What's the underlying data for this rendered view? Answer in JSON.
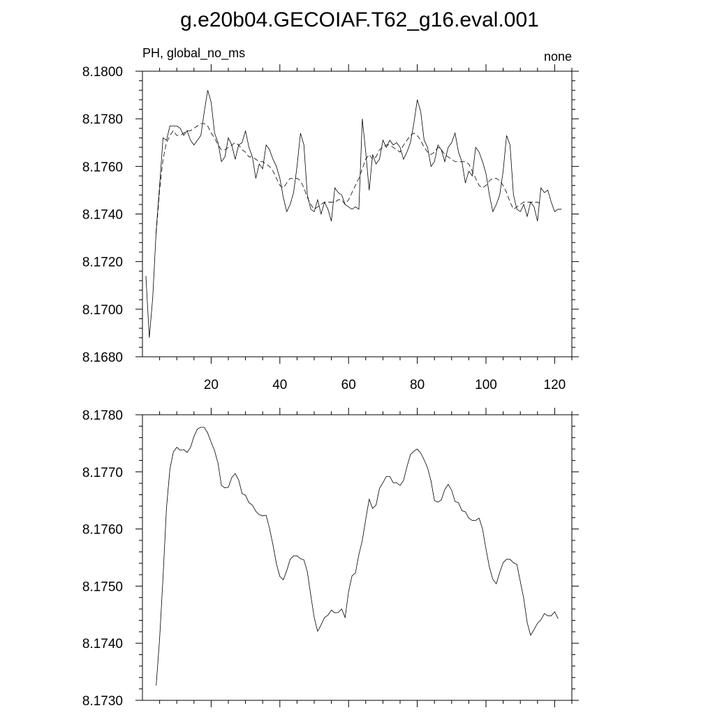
{
  "title": "g.e20b04.GECOIAF.T62_g16.eval.001",
  "chart_data": [
    {
      "type": "line",
      "left_label": "PH, global_no_ms",
      "right_label": "none",
      "xlim": [
        0,
        125
      ],
      "ylim": [
        8.168,
        8.18
      ],
      "x_ticks": [
        20,
        40,
        60,
        80,
        100,
        120
      ],
      "y_ticks": [
        "8.1680",
        "8.1700",
        "8.1720",
        "8.1740",
        "8.1760",
        "8.1780",
        "8.1800"
      ],
      "series": [
        {
          "style": "solid",
          "x_start": 1,
          "values": [
            8.1714,
            8.1688,
            8.1705,
            8.1733,
            8.1752,
            8.1772,
            8.1771,
            8.1777,
            8.1777,
            8.1777,
            8.1776,
            8.1773,
            8.1775,
            8.1771,
            8.1769,
            8.1771,
            8.1773,
            8.1783,
            8.1792,
            8.1787,
            8.1774,
            8.177,
            8.1762,
            8.1764,
            8.1772,
            8.1769,
            8.1763,
            8.1769,
            8.177,
            8.1775,
            8.1768,
            8.1764,
            8.1755,
            8.1761,
            8.1759,
            8.1769,
            8.1767,
            8.1763,
            8.176,
            8.1755,
            8.1747,
            8.1741,
            8.1744,
            8.1749,
            8.176,
            8.1774,
            8.1769,
            8.1748,
            8.1742,
            8.1741,
            8.1746,
            8.174,
            8.1745,
            8.1742,
            8.1737,
            8.1751,
            8.1749,
            8.1748,
            8.1744,
            8.1743,
            8.1742,
            8.1743,
            8.1742,
            8.178,
            8.1766,
            8.175,
            8.1765,
            8.1761,
            8.1763,
            8.1771,
            8.1768,
            8.1771,
            8.1769,
            8.177,
            8.1768,
            8.1763,
            8.1766,
            8.177,
            8.1778,
            8.1788,
            8.1783,
            8.1771,
            8.1768,
            8.176,
            8.1762,
            8.1769,
            8.1767,
            8.1762,
            8.1768,
            8.177,
            8.1774,
            8.1766,
            8.1762,
            8.1753,
            8.1758,
            8.1756,
            8.1768,
            8.1766,
            8.1762,
            8.1757,
            8.1748,
            8.1741,
            8.1744,
            8.1748,
            8.1758,
            8.1773,
            8.1769,
            8.1748,
            8.1742,
            8.1741,
            8.1744,
            8.1739,
            8.1745,
            8.1743,
            8.1737,
            8.1751,
            8.1749,
            8.175,
            8.1745,
            8.1741,
            8.1742,
            8.1742
          ]
        },
        {
          "style": "dashed",
          "x_start": 4,
          "values": [
            8.1732,
            8.175,
            8.1763,
            8.177,
            8.1773,
            8.1775,
            8.1773,
            8.1773,
            8.1774,
            8.1775,
            8.1775,
            8.1776,
            8.1777,
            8.1778,
            8.1778,
            8.1777,
            8.1774,
            8.1772,
            8.1769,
            8.1767,
            8.1767,
            8.1768,
            8.1769,
            8.177,
            8.1769,
            8.1767,
            8.1766,
            8.1764,
            8.1764,
            8.1763,
            8.1762,
            8.1762,
            8.1761,
            8.176,
            8.1758,
            8.1755,
            8.1752,
            8.1751,
            8.1753,
            8.1755,
            8.1755,
            8.1755,
            8.1754,
            8.1751,
            8.1747,
            8.1744,
            8.1742,
            8.1743,
            8.1744,
            8.1745,
            8.1745,
            8.1745,
            8.1745,
            8.1746,
            8.1746,
            8.1744,
            8.1746,
            8.1749,
            8.1752,
            8.1755,
            8.1759,
            8.1763,
            8.1765,
            8.1763,
            8.1764,
            8.1767,
            8.1768,
            8.1769,
            8.1769,
            8.1768,
            8.1767,
            8.1766,
            8.1769,
            8.1771,
            8.1773,
            8.1774,
            8.1773,
            8.1771,
            8.1768,
            8.1766,
            8.1765,
            8.1766,
            8.1768,
            8.1767,
            8.1765,
            8.1764,
            8.1763,
            8.1762,
            8.1762,
            8.1762,
            8.1762,
            8.1761,
            8.1758,
            8.1755,
            8.1752,
            8.1751,
            8.1752,
            8.1754,
            8.1755,
            8.1755,
            8.1754,
            8.1752,
            8.1749,
            8.1745,
            8.1742,
            8.1743,
            8.1744,
            8.1745,
            8.1745,
            8.1745,
            8.1745,
            8.1745,
            8.1744
          ]
        }
      ]
    },
    {
      "type": "line",
      "xlim": [
        0,
        125
      ],
      "ylim": [
        8.173,
        8.178
      ],
      "y_ticks": [
        "8.1730",
        "8.1740",
        "8.1750",
        "8.1760",
        "8.1770",
        "8.1780"
      ],
      "series": [
        {
          "style": "solid",
          "x_start": 4,
          "values": [
            8.17326,
            8.17408,
            8.17516,
            8.17637,
            8.17705,
            8.17735,
            8.17743,
            8.17738,
            8.17739,
            8.17734,
            8.17743,
            8.17762,
            8.17775,
            8.17778,
            8.17778,
            8.17768,
            8.17752,
            8.17737,
            8.17715,
            8.17676,
            8.17672,
            8.17673,
            8.1769,
            8.17697,
            8.17686,
            8.17662,
            8.17659,
            8.17646,
            8.17642,
            8.17631,
            8.17625,
            8.17623,
            8.17624,
            8.17601,
            8.17572,
            8.17539,
            8.17517,
            8.17511,
            8.17527,
            8.17547,
            8.17553,
            8.17553,
            8.17548,
            8.17546,
            8.17525,
            8.17484,
            8.17445,
            8.17421,
            8.17432,
            8.17445,
            8.17449,
            8.17458,
            8.17453,
            8.17454,
            8.1746,
            8.17445,
            8.1749,
            8.17518,
            8.17523,
            8.17555,
            8.1758,
            8.17617,
            8.17652,
            8.17636,
            8.17642,
            8.17671,
            8.17681,
            8.17692,
            8.17692,
            8.17681,
            8.17681,
            8.17676,
            8.17685,
            8.17709,
            8.1773,
            8.17736,
            8.1774,
            8.17733,
            8.17721,
            8.17707,
            8.17684,
            8.1765,
            8.17647,
            8.17651,
            8.17669,
            8.17678,
            8.17668,
            8.17648,
            8.17646,
            8.17632,
            8.1763,
            8.17619,
            8.17615,
            8.17615,
            8.17619,
            8.176,
            8.17565,
            8.17533,
            8.17512,
            8.17504,
            8.17524,
            8.17541,
            8.17547,
            8.17547,
            8.17541,
            8.17538,
            8.17508,
            8.17478,
            8.17436,
            8.17414,
            8.17424,
            8.17435,
            8.17441,
            8.17452,
            8.17448,
            8.17448,
            8.17455,
            8.17443
          ]
        }
      ]
    }
  ]
}
